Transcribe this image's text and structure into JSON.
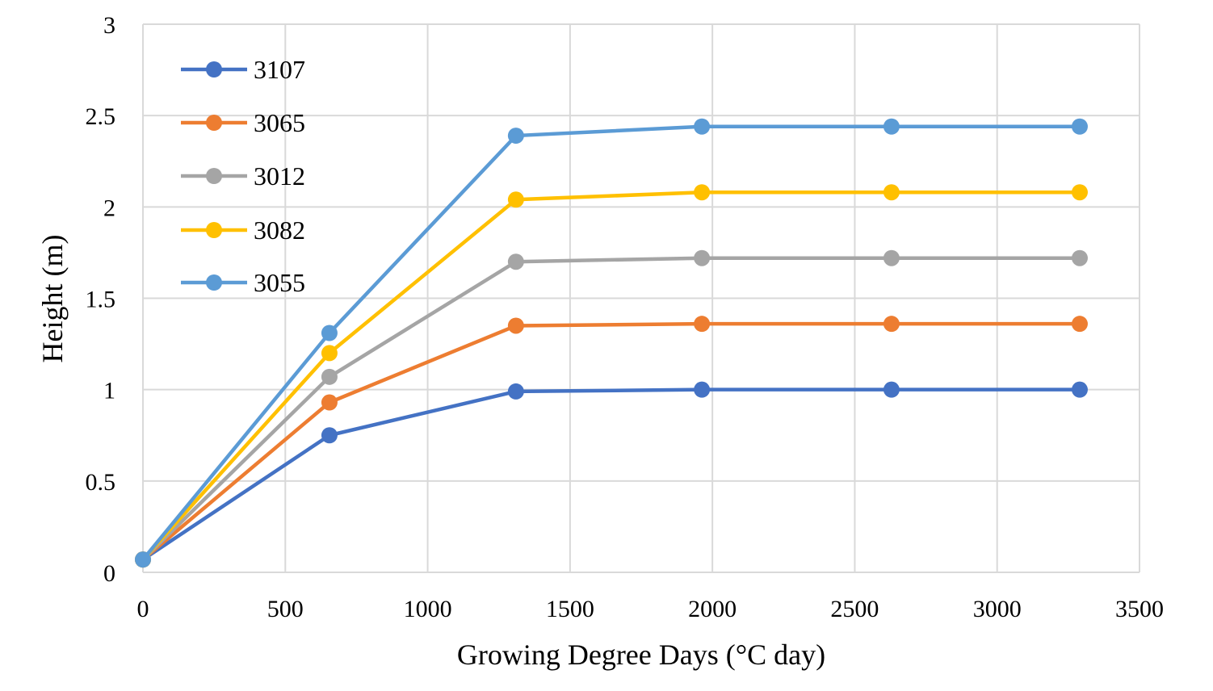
{
  "chart_data": {
    "type": "line",
    "title": "",
    "xlabel": "Growing Degree Days (°C day)",
    "ylabel": "Height (m)",
    "xlim": [
      0,
      3500
    ],
    "ylim": [
      0,
      3
    ],
    "xticks": [
      0,
      500,
      1000,
      1500,
      2000,
      2500,
      3000,
      3500
    ],
    "yticks": [
      0,
      0.5,
      1,
      1.5,
      2,
      2.5,
      3
    ],
    "grid": true,
    "legend_position": "top-left",
    "x": [
      0,
      655,
      1310,
      1963,
      2629,
      3290
    ],
    "series": [
      {
        "name": "3107",
        "color": "#4472C4",
        "values": [
          0.07,
          0.75,
          0.99,
          1.0,
          1.0,
          1.0
        ]
      },
      {
        "name": "3065",
        "color": "#ED7D31",
        "values": [
          0.07,
          0.93,
          1.35,
          1.36,
          1.36,
          1.36
        ]
      },
      {
        "name": "3012",
        "color": "#A5A5A5",
        "values": [
          0.07,
          1.07,
          1.7,
          1.72,
          1.72,
          1.72
        ]
      },
      {
        "name": "3082",
        "color": "#FFC000",
        "values": [
          0.07,
          1.2,
          2.04,
          2.08,
          2.08,
          2.08
        ]
      },
      {
        "name": "3055",
        "color": "#5B9BD5",
        "values": [
          0.07,
          1.31,
          2.39,
          2.44,
          2.44,
          2.44
        ]
      }
    ]
  }
}
